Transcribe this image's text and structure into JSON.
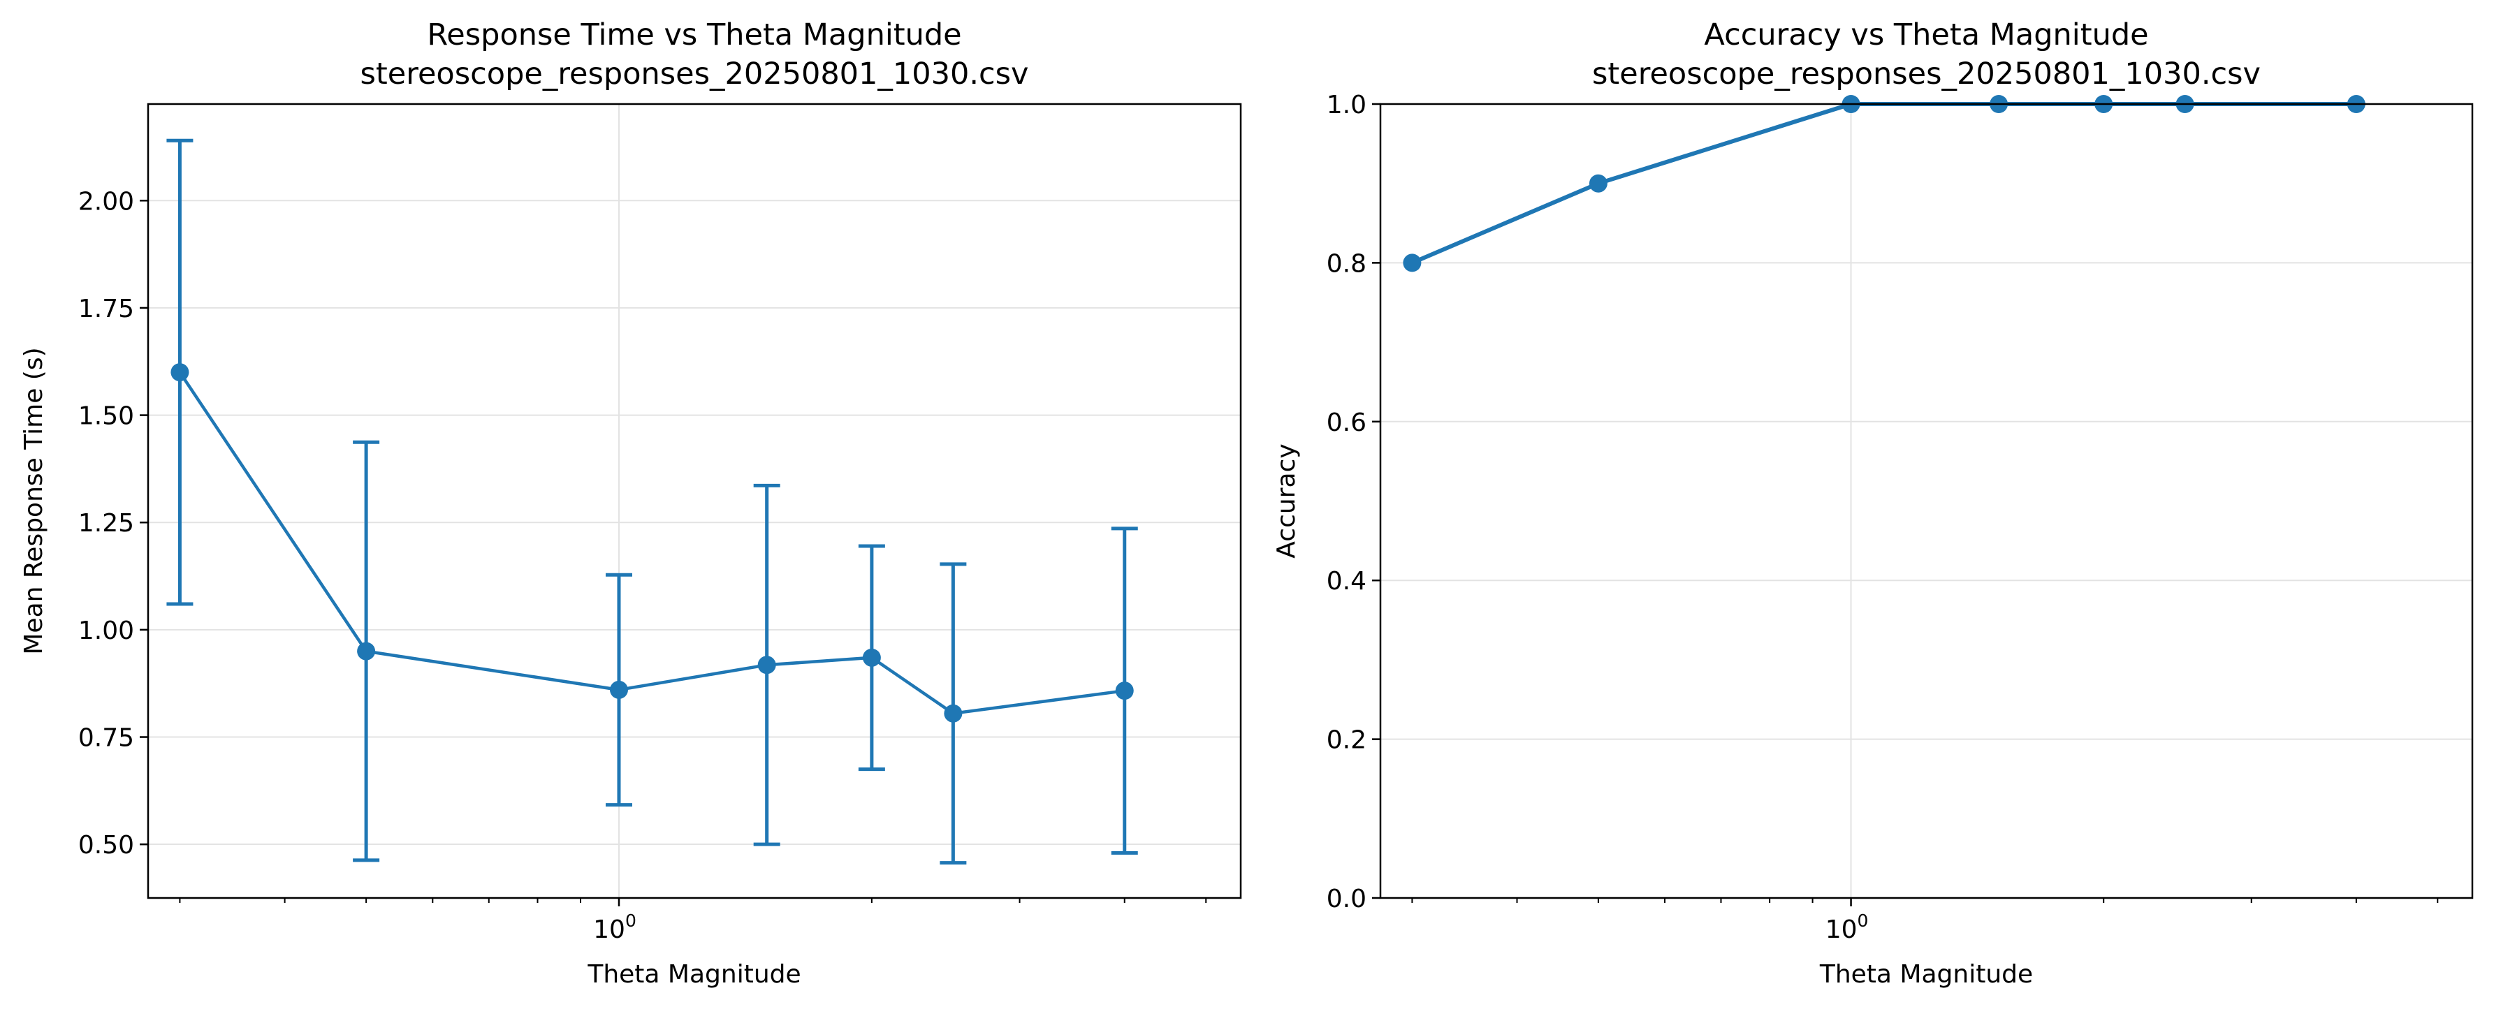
{
  "chart_data": [
    {
      "type": "line",
      "title": "Response Time vs Theta Magnitude",
      "subtitle": "stereoscope_responses_20250801_1030.csv",
      "xlabel": "Theta Magnitude",
      "ylabel": "Mean Response Time (s)",
      "xscale": "log",
      "xlim": [
        0.275,
        5.5
      ],
      "ylim": [
        0.375,
        2.225
      ],
      "xticks": [
        {
          "value": 1,
          "base": "10",
          "exp": "0"
        }
      ],
      "yticks": [
        0.5,
        0.75,
        1.0,
        1.25,
        1.5,
        1.75,
        2.0
      ],
      "ytick_labels": [
        "0.50",
        "0.75",
        "1.00",
        "1.25",
        "1.50",
        "1.75",
        "2.00"
      ],
      "grid": true,
      "color": "#1f77b4",
      "series": [
        {
          "x": [
            0.3,
            0.5,
            1.0,
            1.5,
            2.0,
            2.5,
            4.0
          ],
          "y": [
            1.6,
            0.95,
            0.86,
            0.918,
            0.935,
            0.805,
            0.858
          ],
          "yerr": [
            0.54,
            0.487,
            0.268,
            0.418,
            0.26,
            0.348,
            0.378
          ]
        }
      ]
    },
    {
      "type": "line",
      "title": "Accuracy vs Theta Magnitude",
      "subtitle": "stereoscope_responses_20250801_1030.csv",
      "xlabel": "Theta Magnitude",
      "ylabel": "Accuracy",
      "xscale": "log",
      "xlim": [
        0.275,
        5.5
      ],
      "ylim": [
        0.0,
        1.0
      ],
      "xticks": [
        {
          "value": 1,
          "base": "10",
          "exp": "0"
        }
      ],
      "yticks": [
        0.0,
        0.2,
        0.4,
        0.6,
        0.8,
        1.0
      ],
      "ytick_labels": [
        "0.0",
        "0.2",
        "0.4",
        "0.6",
        "0.8",
        "1.0"
      ],
      "grid": true,
      "color": "#1f77b4",
      "series": [
        {
          "x": [
            0.3,
            0.5,
            1.0,
            1.5,
            2.0,
            2.5,
            4.0
          ],
          "y": [
            0.8,
            0.9,
            1.0,
            1.0,
            1.0,
            1.0,
            1.0
          ]
        }
      ]
    }
  ]
}
